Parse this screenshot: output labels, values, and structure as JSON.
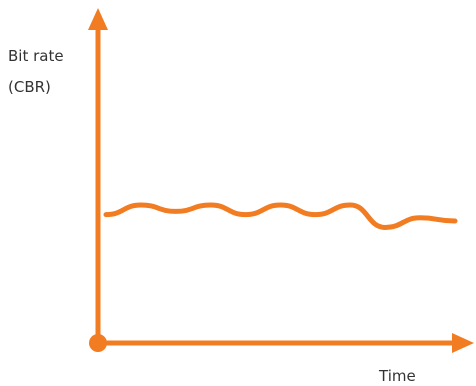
{
  "chart_data": {
    "type": "line",
    "ylabel": [
      "Bit rate",
      "(CBR)"
    ],
    "xlabel": "Time",
    "axis_color": "#f27c21",
    "line_color": "#f27c21",
    "series": [
      {
        "x": [
          0,
          0.1,
          0.2,
          0.3,
          0.4,
          0.5,
          0.6,
          0.7,
          0.8,
          0.9,
          1.0
        ],
        "values": [
          0.4,
          0.43,
          0.41,
          0.43,
          0.4,
          0.43,
          0.4,
          0.43,
          0.36,
          0.39,
          0.38
        ]
      }
    ],
    "grid": false,
    "legend": "none"
  }
}
